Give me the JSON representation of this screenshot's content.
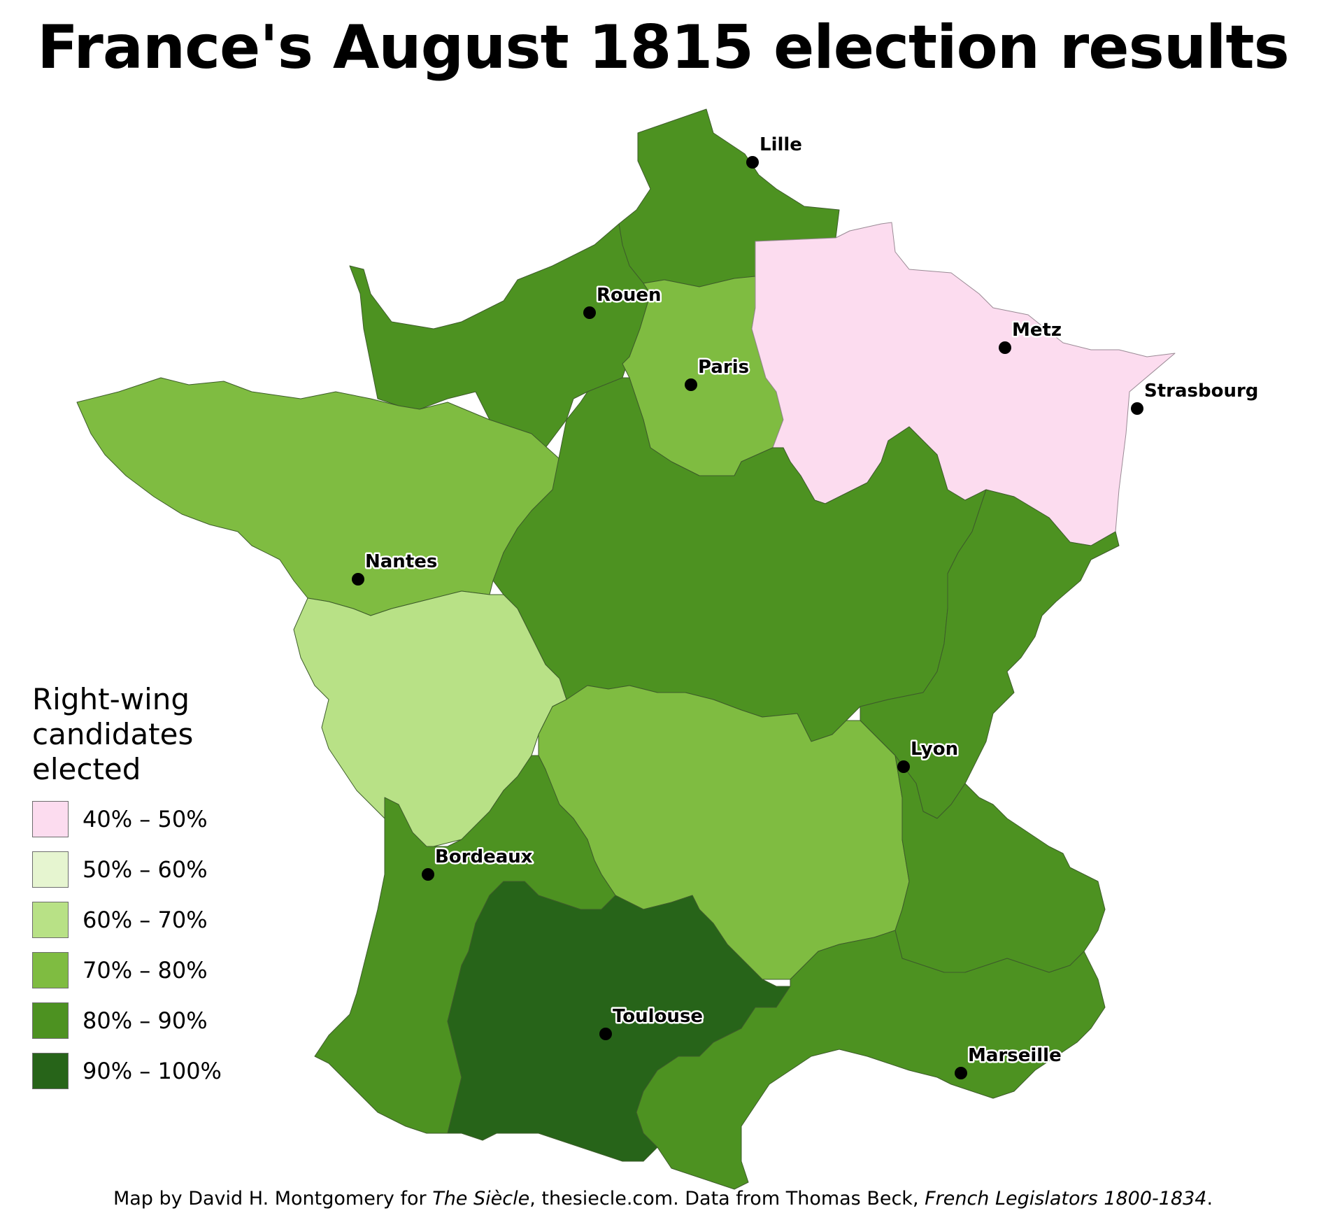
{
  "title": "France's August 1815 election results",
  "legend": {
    "title": "Right-wing candidates elected",
    "items": [
      {
        "label": "40% – 50%",
        "color": "#fcdcef"
      },
      {
        "label": "50% – 60%",
        "color": "#e6f5d0"
      },
      {
        "label": "60% – 70%",
        "color": "#b8e186"
      },
      {
        "label": "70% – 80%",
        "color": "#7fbc41"
      },
      {
        "label": "80% – 90%",
        "color": "#4d9221"
      },
      {
        "label": "90% – 100%",
        "color": "#276419"
      }
    ]
  },
  "cities": [
    {
      "name": "Lille"
    },
    {
      "name": "Rouen"
    },
    {
      "name": "Paris"
    },
    {
      "name": "Metz"
    },
    {
      "name": "Strasbourg"
    },
    {
      "name": "Nantes"
    },
    {
      "name": "Lyon"
    },
    {
      "name": "Bordeaux"
    },
    {
      "name": "Toulouse"
    },
    {
      "name": "Marseille"
    }
  ],
  "credit": {
    "part1": "Map by David H. Montgomery for ",
    "publication": "The Siècle",
    "part2": ", thesiecle.com. Data from Thomas Beck, ",
    "source": "French Legislators 1800-1834",
    "part3": "."
  }
}
